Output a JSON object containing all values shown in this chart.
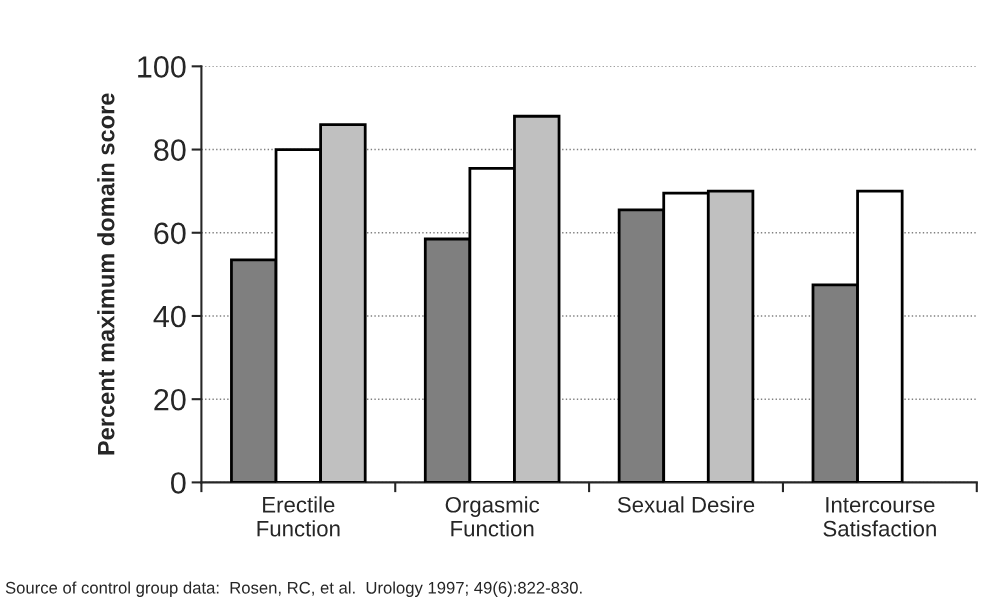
{
  "chart_data": {
    "type": "bar",
    "ylabel": "Percent maximum domain score",
    "categories": [
      "Erectile\nFunction",
      "Orgasmic\nFunction",
      "Sexual Desire",
      "Intercourse\nSatisfaction"
    ],
    "series": [
      {
        "color": "#7f7f7f",
        "values": [
          53.5,
          58.5,
          65.5,
          47.5
        ]
      },
      {
        "color": "#ffffff",
        "values": [
          80,
          75.5,
          69.5,
          70
        ]
      },
      {
        "color": "#c0c0c0",
        "values": [
          86,
          88,
          70,
          null
        ]
      }
    ],
    "ylim": [
      0,
      100
    ],
    "yticks": [
      0,
      20,
      40,
      60,
      80,
      100
    ],
    "grid": "y",
    "legend": false,
    "annotations": [
      "Source of control group data:  Rosen, RC, et al.  Urology 1997; 49(6):822-830."
    ]
  }
}
